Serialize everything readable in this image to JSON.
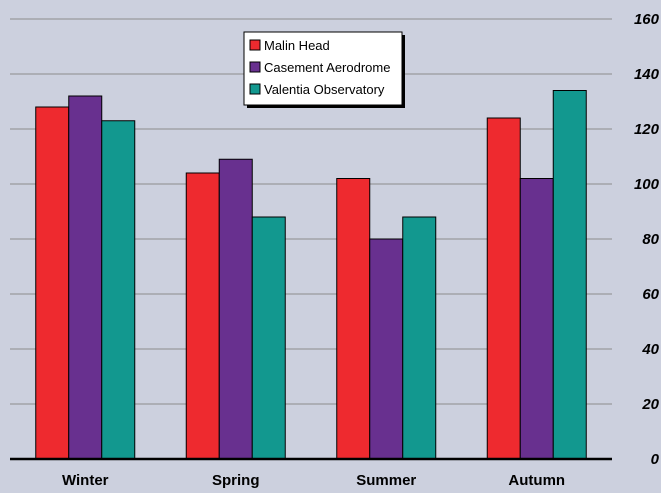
{
  "chart_data": {
    "type": "bar",
    "title": "",
    "xlabel": "",
    "ylabel": "",
    "categories": [
      "Winter",
      "Spring",
      "Summer",
      "Autumn"
    ],
    "series": [
      {
        "name": "Malin Head",
        "color": "#ee2a2f",
        "values": [
          128,
          104,
          102,
          124
        ]
      },
      {
        "name": "Casement Aerodrome",
        "color": "#68308f",
        "values": [
          132,
          109,
          80,
          102
        ]
      },
      {
        "name": "Valentia Observatory",
        "color": "#12988f",
        "values": [
          123,
          88,
          88,
          134
        ]
      }
    ],
    "ylim": [
      0,
      160
    ],
    "yticks": [
      "0",
      "20",
      "40",
      "60",
      "80",
      "100",
      "120",
      "140",
      "160"
    ],
    "grid": true,
    "legend_position": "top-center",
    "axis_side": "right"
  }
}
